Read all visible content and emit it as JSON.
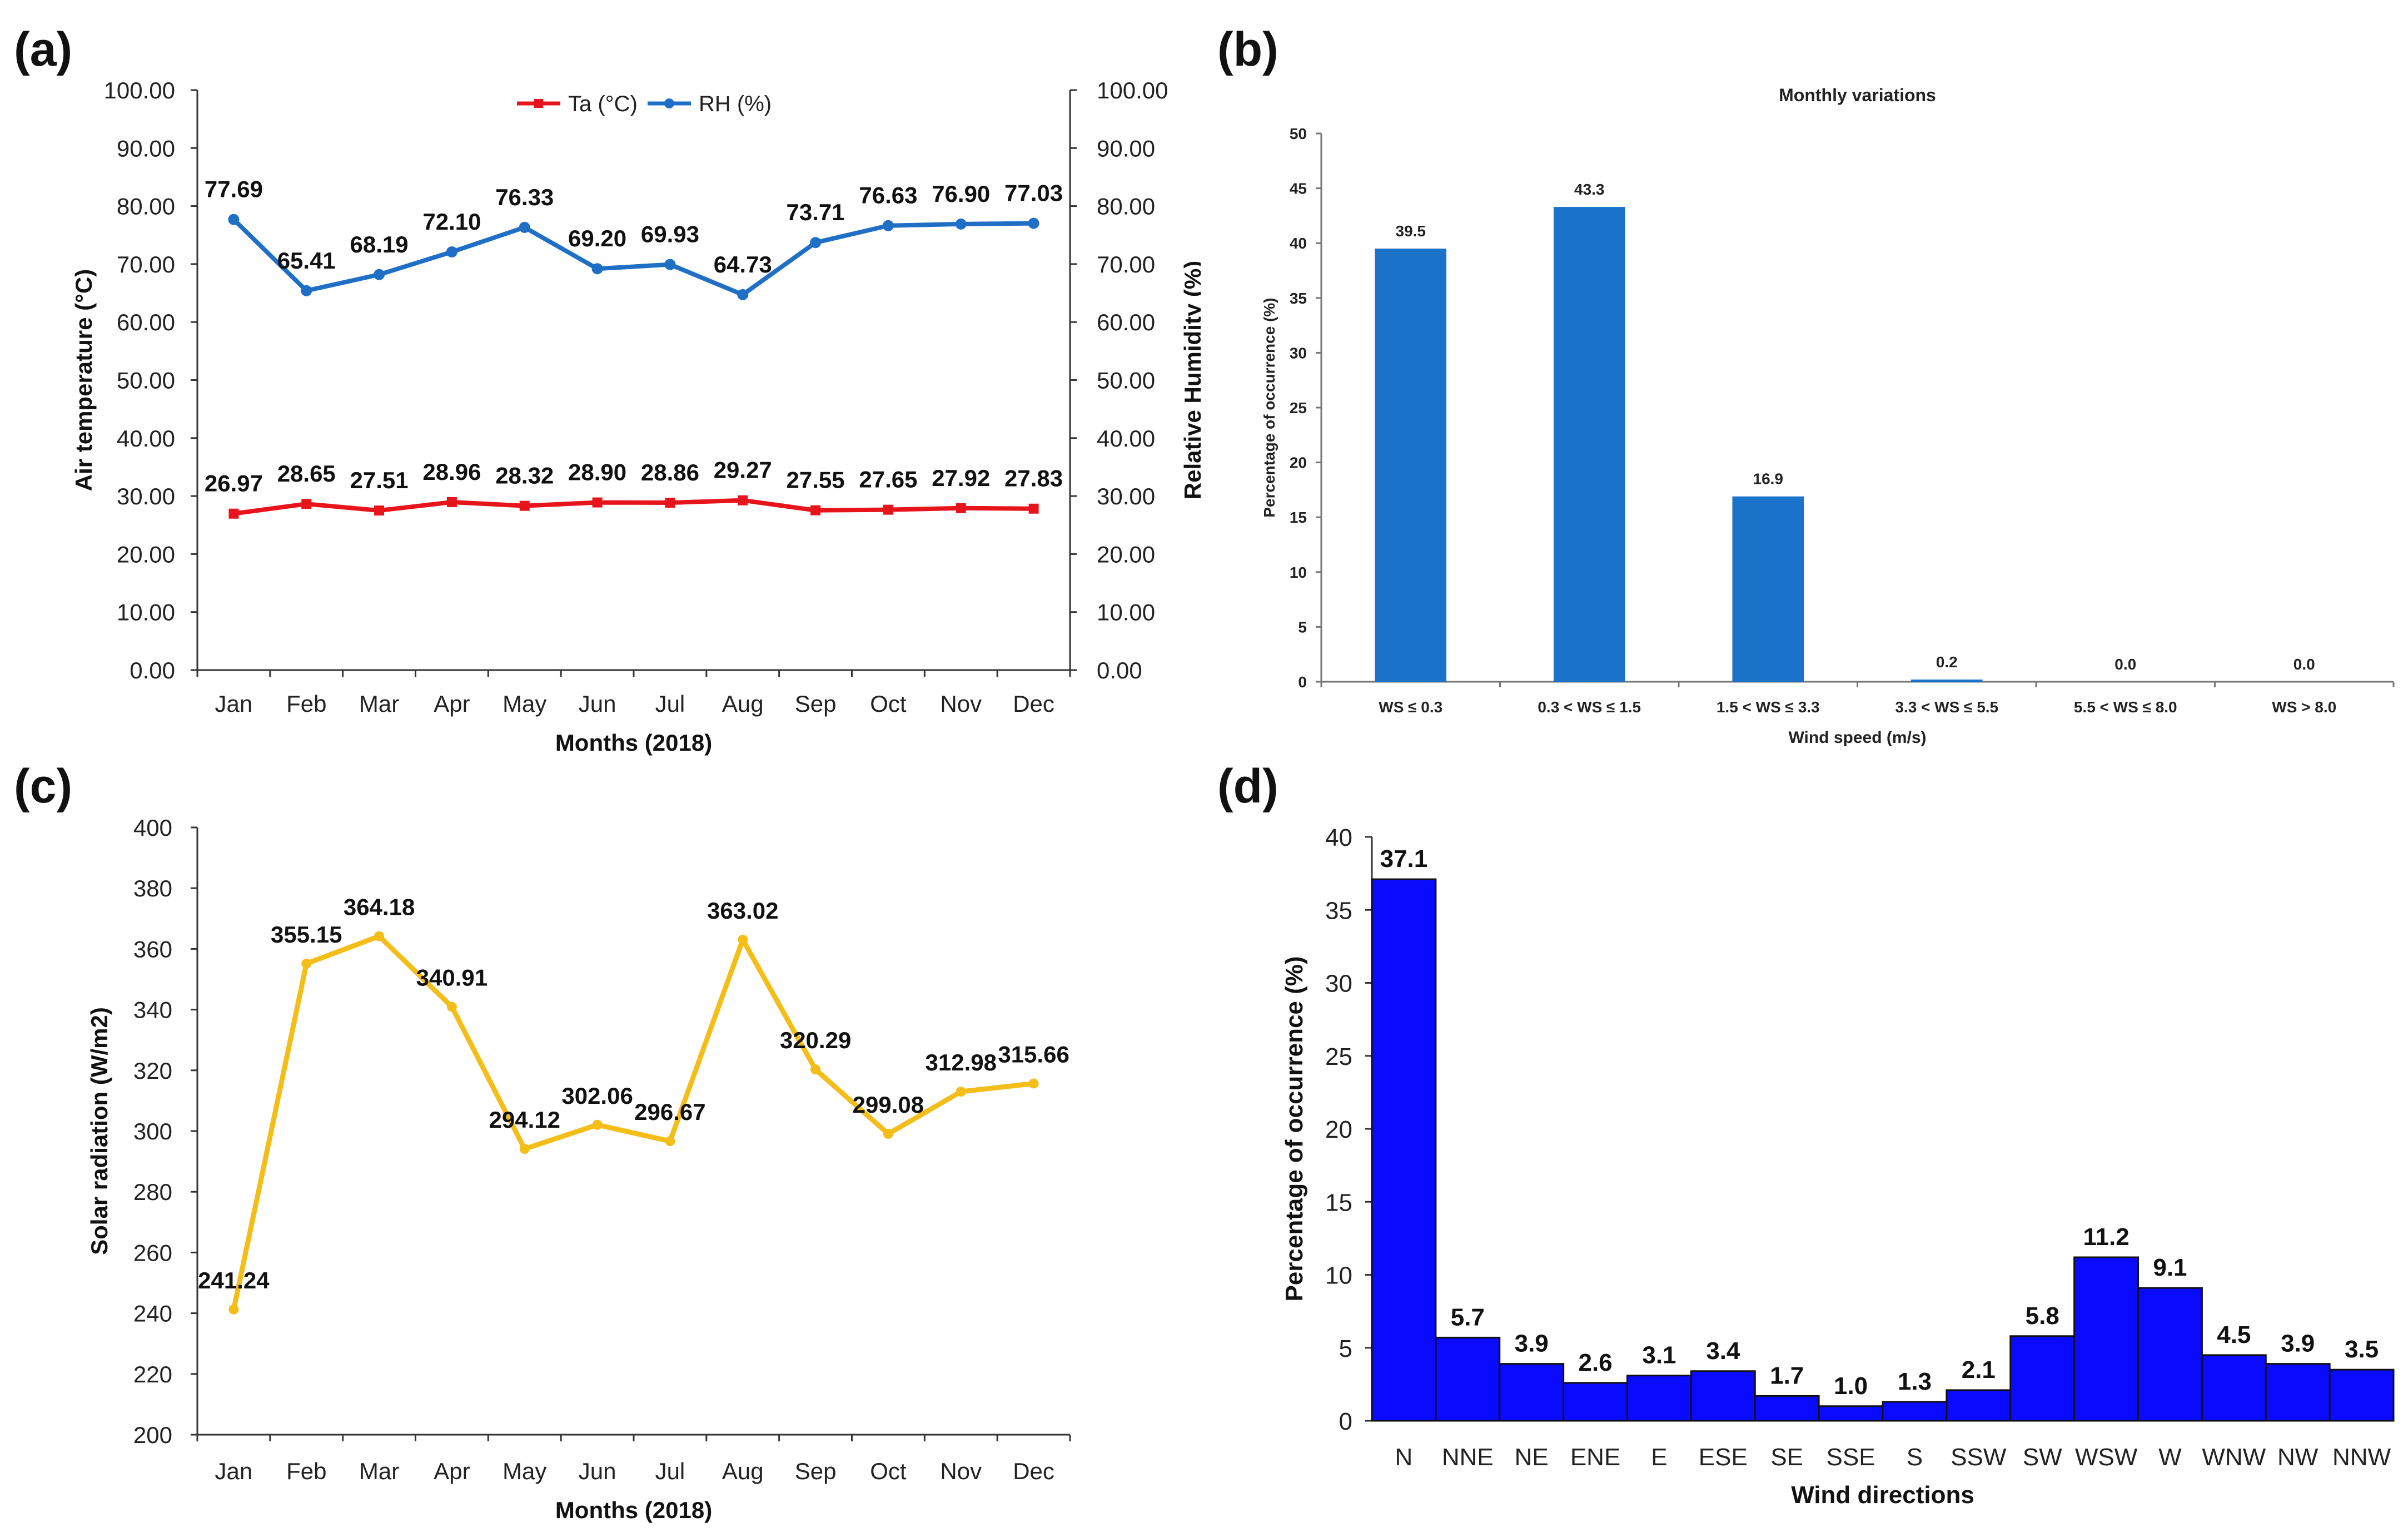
{
  "panels": {
    "a": {
      "label": "(a)"
    },
    "b": {
      "label": "(b)"
    },
    "c": {
      "label": "(c)"
    },
    "d": {
      "label": "(d)"
    }
  },
  "chart_data": [
    {
      "id": "a",
      "type": "line",
      "title": "",
      "categories": [
        "Jan",
        "Feb",
        "Mar",
        "Apr",
        "May",
        "Jun",
        "Jul",
        "Aug",
        "Sep",
        "Oct",
        "Nov",
        "Dec"
      ],
      "series": [
        {
          "name": "Ta (°C)",
          "color": "#e8141b",
          "marker": "square",
          "values": [
            26.97,
            28.65,
            27.51,
            28.96,
            28.32,
            28.9,
            28.86,
            29.27,
            27.55,
            27.65,
            27.92,
            27.83
          ],
          "labels": [
            "26.97",
            "28.65",
            "27.51",
            "28.96",
            "28.32",
            "28.90",
            "28.86",
            "29.27",
            "27.55",
            "27.65",
            "27.92",
            "27.83"
          ]
        },
        {
          "name": "RH (%)",
          "color": "#1f6fc6",
          "marker": "circle",
          "values": [
            77.69,
            65.41,
            68.19,
            72.1,
            76.33,
            69.2,
            69.93,
            64.73,
            73.71,
            76.63,
            76.9,
            77.03
          ],
          "labels": [
            "77.69",
            "65.41",
            "68.19",
            "72.10",
            "76.33",
            "69.20",
            "69.93",
            "64.73",
            "73.71",
            "76.63",
            "76.90",
            "77.03"
          ]
        }
      ],
      "xlabel": "Months (2018)",
      "ylabel": "Air temperature (°C)",
      "y2label": "Relative Humidity (%)",
      "ylim": [
        0,
        100
      ],
      "yticks": [
        "0.00",
        "10.00",
        "20.00",
        "30.00",
        "40.00",
        "50.00",
        "60.00",
        "70.00",
        "80.00",
        "90.00",
        "100.00"
      ]
    },
    {
      "id": "b",
      "type": "bar",
      "title": "Monthly variations",
      "categories": [
        "WS ≤ 0.3",
        "0.3 < WS ≤ 1.5",
        "1.5 < WS ≤ 3.3",
        "3.3 < WS ≤ 5.5",
        "5.5 < WS ≤ 8.0",
        "WS > 8.0"
      ],
      "values": [
        39.5,
        43.3,
        16.9,
        0.2,
        0.0,
        0.0
      ],
      "labels": [
        "39.5",
        "43.3",
        "16.9",
        "0.2",
        "0.0",
        "0.0"
      ],
      "color": "#1a73c8",
      "xlabel": "Wind speed (m/s)",
      "ylabel": "Percentage of occurrence (%)",
      "ylim": [
        0,
        50
      ],
      "yticks": [
        "0",
        "5",
        "10",
        "15",
        "20",
        "25",
        "30",
        "35",
        "40",
        "45",
        "50"
      ]
    },
    {
      "id": "c",
      "type": "line",
      "title": "",
      "categories": [
        "Jan",
        "Feb",
        "Mar",
        "Apr",
        "May",
        "Jun",
        "Jul",
        "Aug",
        "Sep",
        "Oct",
        "Nov",
        "Dec"
      ],
      "values": [
        241.24,
        355.15,
        364.18,
        340.91,
        294.12,
        302.06,
        296.67,
        363.02,
        320.29,
        299.08,
        312.98,
        315.66
      ],
      "labels": [
        "241.24",
        "355.15",
        "364.18",
        "340.91",
        "294.12",
        "302.06",
        "296.67",
        "363.02",
        "320.29",
        "299.08",
        "312.98",
        "315.66"
      ],
      "color": "#f5bd18",
      "xlabel": "Months (2018)",
      "ylabel": "Solar radiation (W/m2)",
      "ylim": [
        200,
        400
      ],
      "yticks": [
        "200",
        "220",
        "240",
        "260",
        "280",
        "300",
        "320",
        "340",
        "360",
        "380",
        "400"
      ]
    },
    {
      "id": "d",
      "type": "bar",
      "title": "",
      "categories": [
        "N",
        "NNE",
        "NE",
        "ENE",
        "E",
        "ESE",
        "SE",
        "SSE",
        "S",
        "SSW",
        "SW",
        "WSW",
        "W",
        "WNW",
        "NW",
        "NNW"
      ],
      "values": [
        37.1,
        5.7,
        3.9,
        2.6,
        3.1,
        3.4,
        1.7,
        1.0,
        1.3,
        2.1,
        5.8,
        11.2,
        9.1,
        4.5,
        3.9,
        3.5
      ],
      "labels": [
        "37.1",
        "5.7",
        "3.9",
        "2.6",
        "3.1",
        "3.4",
        "1.7",
        "1.0",
        "1.3",
        "2.1",
        "5.8",
        "11.2",
        "9.1",
        "4.5",
        "3.9",
        "3.5"
      ],
      "color": "#0a0aff",
      "xlabel": "Wind directions",
      "ylabel": "Percentage of occurrence (%)",
      "ylim": [
        0,
        40
      ],
      "yticks": [
        "0",
        "5",
        "10",
        "15",
        "20",
        "25",
        "30",
        "35",
        "40"
      ]
    }
  ]
}
